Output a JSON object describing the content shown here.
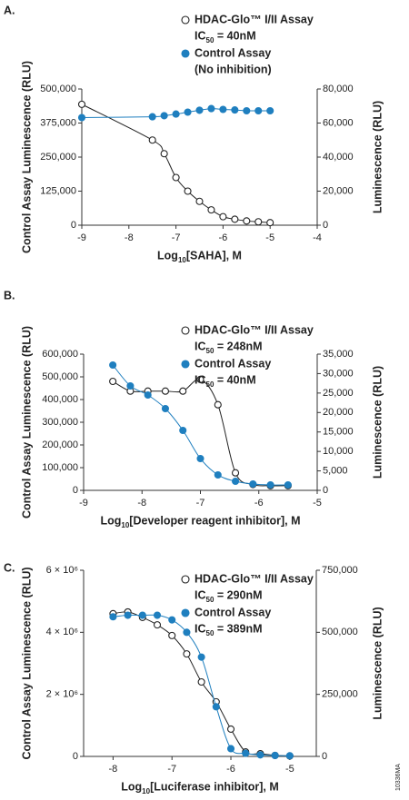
{
  "chart_data": [
    {
      "type": "line",
      "panel": "A.",
      "xlabel": "Log10[SAHA], M",
      "ylabel": "Control Assay Luminescence (RLU)",
      "y2label": "Luminescence (RLU)",
      "x": [
        -9,
        -7.5,
        -7.25,
        -7,
        -6.75,
        -6.5,
        -6.25,
        -6,
        -5.75,
        -5.5,
        -5.25,
        -5
      ],
      "xlim": [
        -9,
        -4
      ],
      "xticks": [
        -9,
        -8,
        -7,
        -6,
        -5,
        -4
      ],
      "ylim": [
        0,
        500000
      ],
      "yticks": [
        0,
        {
          "value": 125000,
          "label": "125,000"
        },
        {
          "value": 250000,
          "label": "250,000"
        },
        {
          "value": 375000,
          "label": "375,000"
        },
        {
          "value": 500000,
          "label": "500,000"
        }
      ],
      "y2lim": [
        0,
        80000
      ],
      "y2ticks": [
        0,
        {
          "value": 20000,
          "label": "20,000"
        },
        {
          "value": 40000,
          "label": "40,000"
        },
        {
          "value": 60000,
          "label": "60,000"
        },
        {
          "value": 80000,
          "label": "80,000"
        }
      ],
      "series": [
        {
          "name": "HDAC-Glo™ I/II Assay",
          "note": "IC50 = 40nM",
          "color": "#222222",
          "marker": "open",
          "axis": "y2",
          "values": [
            71000,
            50000,
            42000,
            28000,
            20000,
            14000,
            9000,
            5000,
            3500,
            2500,
            2000,
            1500
          ]
        },
        {
          "name": "Control Assay",
          "note": "(No inhibition)",
          "color": "#1f7fbf",
          "marker": "filled",
          "axis": "y",
          "values": [
            395000,
            398000,
            402000,
            408000,
            415000,
            422000,
            428000,
            425000,
            423000,
            420000,
            420000,
            420000
          ]
        }
      ]
    },
    {
      "type": "line",
      "panel": "B.",
      "xlabel": "Log10[Developer reagent inhibitor], M",
      "ylabel": "Control Assay Luminescence (RLU)",
      "y2label": "Luminescence (RLU)",
      "x": [
        -8.5,
        -8.2,
        -7.9,
        -7.6,
        -7.3,
        -7,
        -6.7,
        -6.4,
        -6.1,
        -5.8,
        -5.5
      ],
      "xlim": [
        -9,
        -5
      ],
      "xticks": [
        -9,
        -8,
        -7,
        -6,
        -5
      ],
      "ylim": [
        0,
        600000
      ],
      "yticks": [
        0,
        {
          "value": 100000,
          "label": "100,000"
        },
        {
          "value": 200000,
          "label": "200,000"
        },
        {
          "value": 300000,
          "label": "300,000"
        },
        {
          "value": 400000,
          "label": "400,000"
        },
        {
          "value": 500000,
          "label": "500,000"
        },
        {
          "value": 600000,
          "label": "600,000"
        }
      ],
      "y2lim": [
        0,
        35000
      ],
      "y2ticks": [
        0,
        {
          "value": 5000,
          "label": "5,000"
        },
        {
          "value": 10000,
          "label": "10,000"
        },
        {
          "value": 15000,
          "label": "15,000"
        },
        {
          "value": 20000,
          "label": "20,000"
        },
        {
          "value": 25000,
          "label": "25,000"
        },
        {
          "value": 30000,
          "label": "30,000"
        },
        {
          "value": 35000,
          "label": "35,000"
        }
      ],
      "series": [
        {
          "name": "HDAC-Glo™ I/II Assay",
          "note": "IC50 = 248nM",
          "color": "#222222",
          "marker": "open",
          "axis": "y2",
          "values": [
            28000,
            25500,
            25500,
            25500,
            25500,
            28500,
            22000,
            4500,
            1500,
            1200,
            1200
          ]
        },
        {
          "name": "Control Assay",
          "note": "IC50 = 40nM",
          "color": "#1f7fbf",
          "marker": "filled",
          "axis": "y",
          "values": [
            552000,
            460000,
            420000,
            360000,
            264000,
            140000,
            68000,
            40000,
            28000,
            24000,
            24000
          ]
        }
      ]
    },
    {
      "type": "line",
      "panel": "C.",
      "xlabel": "Log10[Luciferase inhibitor], M",
      "ylabel": "Control Assay Luminescence (RLU)",
      "y2label": "Luminescence (RLU)",
      "x": [
        -8,
        -7.75,
        -7.5,
        -7.25,
        -7,
        -6.75,
        -6.5,
        -6.25,
        -6,
        -5.75,
        -5.5,
        -5.25,
        -5
      ],
      "xlim": [
        -8.5,
        -4.55
      ],
      "xticks": [
        -8,
        -7,
        -6,
        -5
      ],
      "ylim": [
        0,
        6000000
      ],
      "yticks": [
        0,
        {
          "value": 2000000,
          "label": "2 × 10⁶"
        },
        {
          "value": 4000000,
          "label": "4 × 10⁶"
        },
        {
          "value": 6000000,
          "label": "6 × 10⁶"
        }
      ],
      "y2lim": [
        0,
        750000
      ],
      "y2ticks": [
        0,
        {
          "value": 250000,
          "label": "250,000"
        },
        {
          "value": 500000,
          "label": "500,000"
        },
        {
          "value": 750000,
          "label": "750,000"
        }
      ],
      "series": [
        {
          "name": "HDAC-Glo™ I/II Assay",
          "note": "IC50 = 290nM",
          "color": "#222222",
          "marker": "open",
          "axis": "y2",
          "values": [
            575000,
            582000,
            560000,
            530000,
            487000,
            413000,
            300000,
            220000,
            110000,
            18000,
            11000,
            4000,
            2000
          ]
        },
        {
          "name": "Control Assay",
          "note": "IC50 = 389nM",
          "color": "#1f7fbf",
          "marker": "filled",
          "axis": "y",
          "values": [
            4500000,
            4550000,
            4550000,
            4550000,
            4400000,
            4000000,
            3200000,
            1600000,
            250000,
            100000,
            50000,
            30000,
            20000
          ]
        }
      ]
    }
  ],
  "figure_code": "10336MA"
}
